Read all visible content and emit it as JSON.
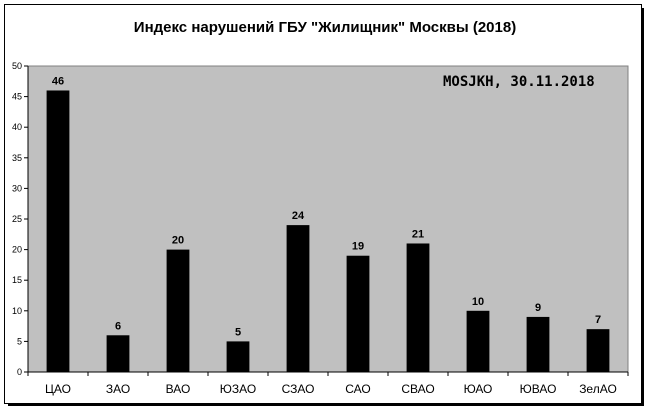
{
  "chart_data": {
    "type": "bar",
    "title": "Индекс нарушений ГБУ \"Жилищник\" Москвы (2018)",
    "categories": [
      "ЦАО",
      "ЗАО",
      "ВАО",
      "ЮЗАО",
      "СЗАО",
      "САО",
      "СВАО",
      "ЮАО",
      "ЮВАО",
      "ЗелАО"
    ],
    "values": [
      46,
      6,
      20,
      5,
      24,
      19,
      21,
      10,
      9,
      7
    ],
    "ylim": [
      0,
      50
    ],
    "yticks": [
      "0",
      "5",
      "10",
      "15",
      "20",
      "25",
      "30",
      "35",
      "40",
      "45",
      "50"
    ],
    "xlabel": "",
    "ylabel": "",
    "grid": false,
    "legend": "none",
    "annotation": "MOSJKH, 30.11.2018",
    "colors": {
      "bar": "#000000",
      "plot_bg": "#c0c0c0",
      "frame_bg": "#ffffff"
    }
  }
}
